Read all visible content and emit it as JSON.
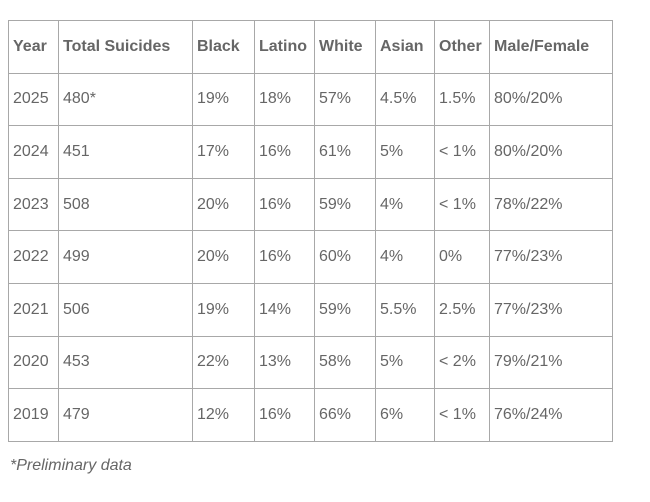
{
  "colors": {
    "text": "#666666",
    "border": "#a8a8a8",
    "background": "#ffffff"
  },
  "chart_data": {
    "type": "table",
    "columns": [
      "Year",
      "Total Suicides",
      "Black",
      "Latino",
      "White",
      "Asian",
      "Other",
      "Male/Female"
    ],
    "rows": [
      [
        "2025",
        "480*",
        "19%",
        "18%",
        "57%",
        "4.5%",
        "1.5%",
        "80%/20%"
      ],
      [
        "2024",
        "451",
        "17%",
        "16%",
        "61%",
        "5%",
        "< 1%",
        "80%/20%"
      ],
      [
        "2023",
        "508",
        "20%",
        "16%",
        "59%",
        "4%",
        "< 1%",
        "78%/22%"
      ],
      [
        "2022",
        "499",
        "20%",
        "16%",
        "60%",
        "4%",
        "0%",
        "77%/23%"
      ],
      [
        "2021",
        "506",
        "19%",
        "14%",
        "59%",
        "5.5%",
        "2.5%",
        "77%/23%"
      ],
      [
        "2020",
        "453",
        "22%",
        "13%",
        "58%",
        "5%",
        "< 2%",
        "79%/21%"
      ],
      [
        "2019",
        "479",
        "12%",
        "16%",
        "66%",
        "6%",
        "< 1%",
        "76%/24%"
      ]
    ],
    "footnote": "*Preliminary data"
  }
}
